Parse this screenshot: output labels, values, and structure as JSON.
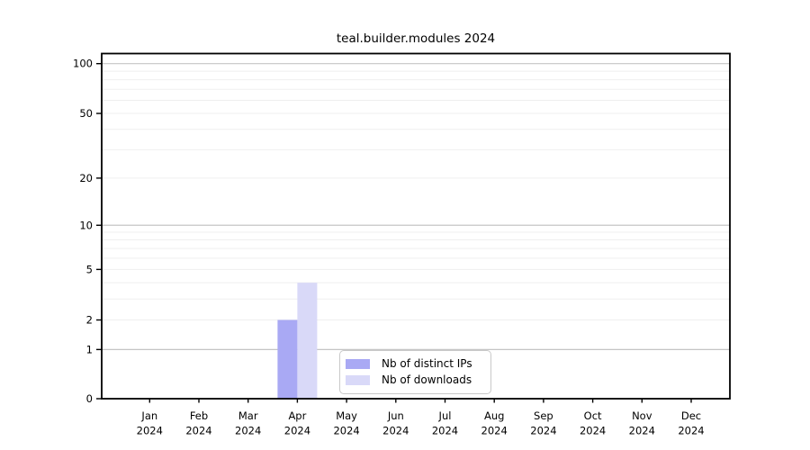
{
  "figure": {
    "background": "#ffffff"
  },
  "chart_data": {
    "type": "bar",
    "title": "teal.builder.modules 2024",
    "x": {
      "months": [
        "Jan",
        "Feb",
        "Mar",
        "Apr",
        "May",
        "Jun",
        "Jul",
        "Aug",
        "Sep",
        "Oct",
        "Nov",
        "Dec"
      ],
      "year": "2024"
    },
    "series": [
      {
        "name": "Nb of distinct IPs",
        "color": "#a9a9f4",
        "values": [
          0,
          0,
          0,
          2,
          0,
          0,
          0,
          0,
          0,
          0,
          0,
          0
        ]
      },
      {
        "name": "Nb of downloads",
        "color": "#d9d9f8",
        "values": [
          0,
          0,
          0,
          4,
          0,
          0,
          0,
          0,
          0,
          0,
          0,
          0
        ]
      }
    ],
    "y_axis": {
      "scale": "log1p",
      "lim": [
        0,
        115
      ],
      "tick_values": [
        0,
        1,
        2,
        5,
        10,
        20,
        50,
        100
      ],
      "tick_labels": [
        "0",
        "1",
        "2",
        "5",
        "10",
        "20",
        "50",
        "100"
      ],
      "major_gridlines": [
        1,
        10,
        100
      ],
      "minor_gridlines": [
        2,
        3,
        4,
        5,
        6,
        7,
        8,
        9,
        20,
        30,
        40,
        50,
        60,
        70,
        80,
        90
      ]
    },
    "legend": {
      "position": "lower-center"
    },
    "colors": {
      "major_grid": "#c4c4c4",
      "minor_grid": "#efefef",
      "axis": "#000000",
      "text": "#000000"
    }
  }
}
